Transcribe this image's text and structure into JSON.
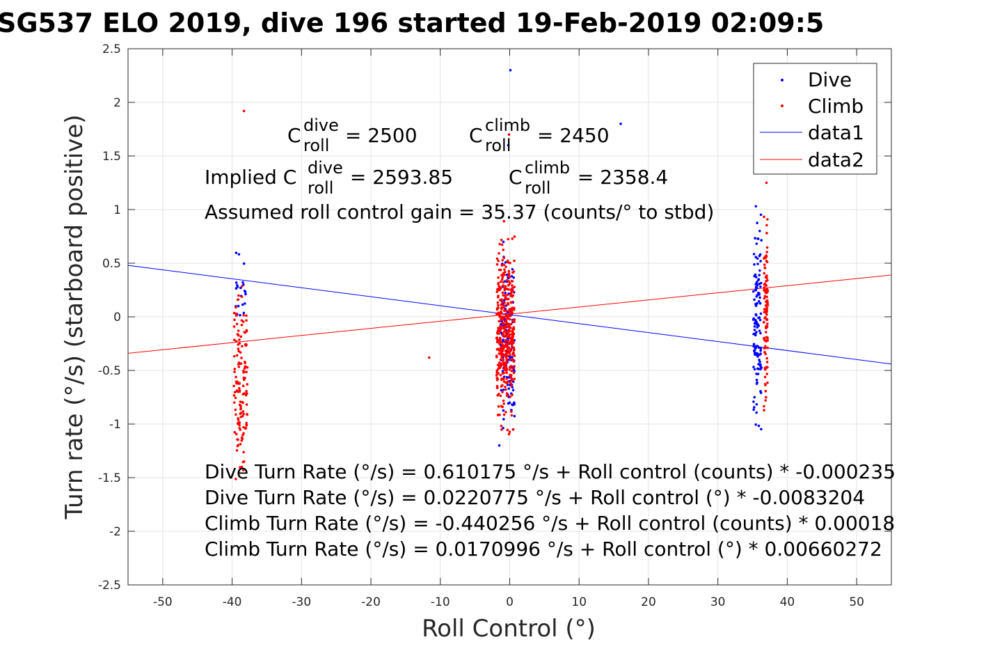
{
  "chart_data": {
    "type": "scatter",
    "title": "SG537 ELO 2019, dive 196 started 19-Feb-2019 02:09:5",
    "xlabel": "Roll Control (°)",
    "ylabel": "Turn rate (°/s) (starboard positive)",
    "xlim": [
      -55,
      55
    ],
    "ylim": [
      -2.5,
      2.5
    ],
    "xticks": [
      -50,
      -40,
      -30,
      -20,
      -10,
      0,
      10,
      20,
      30,
      40,
      50
    ],
    "yticks": [
      -2.5,
      -2,
      -1.5,
      -1,
      -0.5,
      0,
      0.5,
      1,
      1.5,
      2,
      2.5
    ],
    "xtick_labels": [
      "-50",
      "-40",
      "-30",
      "-20",
      "-10",
      "0",
      "10",
      "20",
      "30",
      "40",
      "50"
    ],
    "ytick_labels": [
      "-2.5",
      "-2",
      "-1.5",
      "-1",
      "-0.5",
      "0",
      "0.5",
      "1",
      "1.5",
      "2",
      "2.5"
    ],
    "grid": true,
    "legend_position": "top-right",
    "series": [
      {
        "name": "Dive",
        "kind": "points",
        "color": "#0000ff",
        "clusters": [
          {
            "x_center": -38.8,
            "x_spread": 0.8,
            "y_min": -0.3,
            "y_max": 0.65,
            "count": 22
          },
          {
            "x_center": -0.3,
            "x_spread": 1.0,
            "y_min": -1.25,
            "y_max": 0.9,
            "count": 150
          },
          {
            "x_center": 35.7,
            "x_spread": 0.6,
            "y_min": -1.28,
            "y_max": 1.25,
            "count": 130
          }
        ],
        "outliers": [
          [
            0.1,
            2.3
          ],
          [
            16.0,
            1.8
          ],
          [
            -0.2,
            1.6
          ],
          [
            0.5,
            -1.05
          ],
          [
            -1.5,
            -1.2
          ]
        ]
      },
      {
        "name": "Climb",
        "kind": "points",
        "color": "#ff0000",
        "clusters": [
          {
            "x_center": -38.8,
            "x_spread": 1.0,
            "y_min": -1.8,
            "y_max": 0.6,
            "count": 140
          },
          {
            "x_center": -0.6,
            "x_spread": 1.3,
            "y_min": -1.25,
            "y_max": 1.0,
            "count": 420
          },
          {
            "x_center": 36.9,
            "x_spread": 0.3,
            "y_min": -1.22,
            "y_max": 1.25,
            "count": 110
          }
        ],
        "outliers": [
          [
            -38.3,
            1.92
          ],
          [
            -11.6,
            -0.38
          ],
          [
            -0.1,
            1.7
          ],
          [
            -38.6,
            -1.4
          ],
          [
            37.0,
            1.25
          ]
        ]
      },
      {
        "name": "data1",
        "kind": "line",
        "color": "#0000ff",
        "x": [
          -55,
          55
        ],
        "y": [
          0.48,
          -0.44
        ]
      },
      {
        "name": "data2",
        "kind": "line",
        "color": "#ff0000",
        "x": [
          -55,
          55
        ],
        "y": [
          -0.34,
          0.39
        ]
      }
    ],
    "annotations": {
      "c_dive": {
        "symbol": "C",
        "sup": "dive",
        "sub": "roll",
        "value_text": " = 2500"
      },
      "c_climb": {
        "symbol": "C",
        "sup": "climb",
        "sub": "roll",
        "value_text": " = 2450"
      },
      "implied_prefix": "Implied C",
      "implied_dive": {
        "sup": "dive",
        "sub": "roll",
        "value_text": " = 2593.85"
      },
      "implied_climb": {
        "symbol": "C",
        "sup": "climb",
        "sub": "roll",
        "value_text": " = 2358.4"
      },
      "gain_line": "Assumed roll control gain = 35.37 (counts/° to stbd)",
      "fit_lines": [
        "Dive Turn Rate (°/s) = 0.610175 °/s + Roll control (counts) * -0.000235",
        "Dive Turn Rate (°/s) = 0.0220775 °/s + Roll control (°) * -0.0083204",
        "Climb Turn Rate (°/s) = -0.440256 °/s + Roll control (counts) * 0.00018",
        "Climb Turn Rate (°/s) = 0.0170996 °/s + Roll control (°) * 0.00660272"
      ]
    }
  }
}
